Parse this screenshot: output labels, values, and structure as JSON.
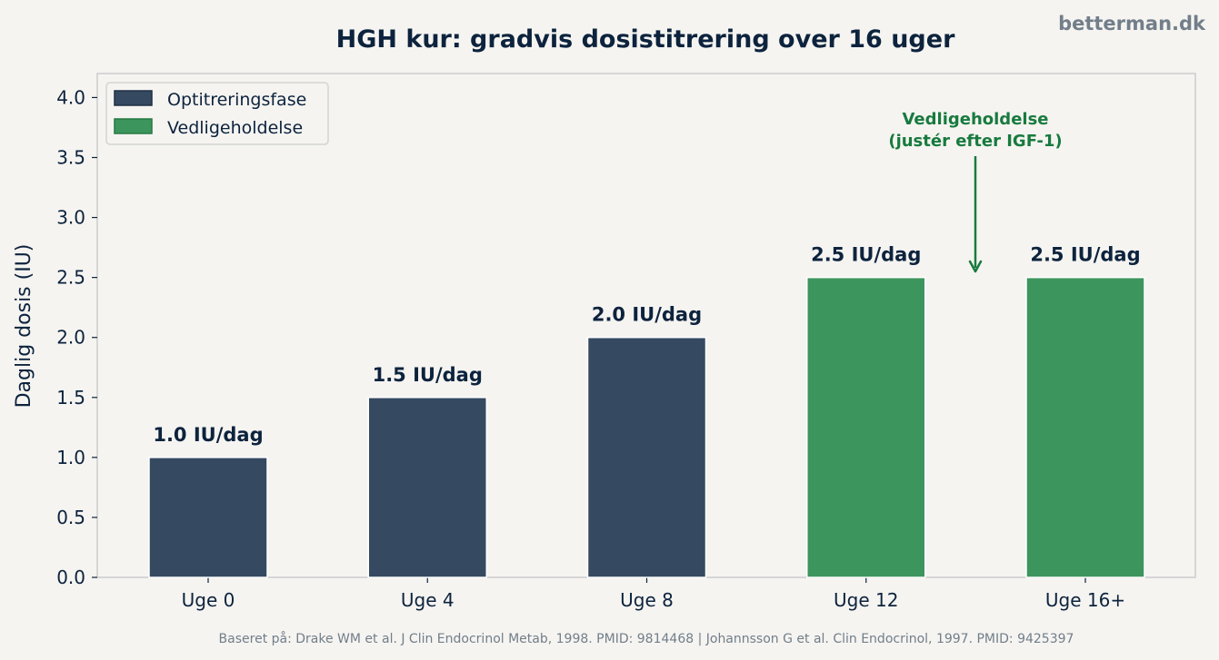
{
  "chart_data": {
    "type": "bar",
    "title": "HGH kur: gradvis dosistitrering over 16 uger",
    "watermark": "betterman.dk",
    "ylabel": "Daglig dosis (IU)",
    "xlabel": "",
    "ylim": [
      0,
      4.2
    ],
    "yticks": [
      "0.0",
      "0.5",
      "1.0",
      "1.5",
      "2.0",
      "2.5",
      "3.0",
      "3.5",
      "4.0"
    ],
    "categories": [
      "Uge 0",
      "Uge 4",
      "Uge 8",
      "Uge 12",
      "Uge 16+"
    ],
    "values": [
      1.0,
      1.5,
      2.0,
      2.5,
      2.5
    ],
    "value_labels": [
      "1.0 IU/dag",
      "1.5 IU/dag",
      "2.0 IU/dag",
      "2.5 IU/dag",
      "2.5 IU/dag"
    ],
    "phase": [
      "Optitreringsfase",
      "Optitreringsfase",
      "Optitreringsfase",
      "Vedligeholdelse",
      "Vedligeholdelse"
    ],
    "legend": {
      "placement": "top-left",
      "entries": [
        {
          "name": "Optitreringsfase",
          "color": "#354a61"
        },
        {
          "name": "Vedligeholdelse",
          "color": "#3d955e"
        }
      ]
    },
    "annotation": {
      "lines": [
        "Vedligeholdelse",
        "(justér efter IGF-1)"
      ],
      "color": "#187a3e"
    },
    "grid": false,
    "source": "Baseret på: Drake WM et al. J Clin Endocrinol Metab, 1998. PMID: 9814468 | Johannsson G et al. Clin Endocrinol, 1997. PMID: 9425397"
  }
}
